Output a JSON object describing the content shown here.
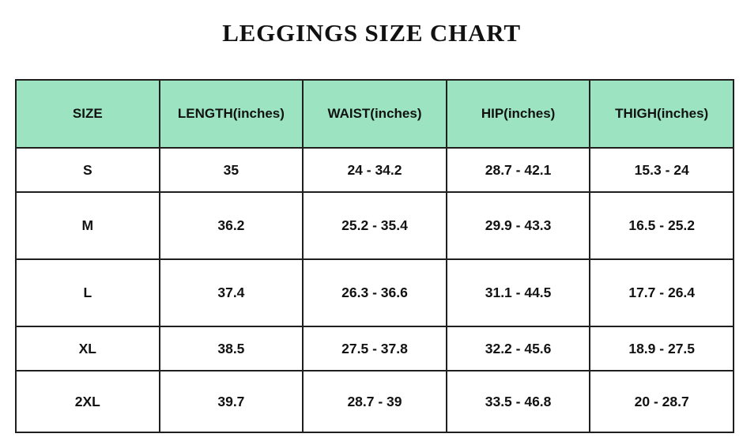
{
  "page": {
    "title": "LEGGINGS SIZE CHART",
    "background": "#ffffff"
  },
  "table": {
    "header_bg": "#9ce4c1",
    "border_color": "#1f1f1f",
    "text_color": "#121212",
    "unit": "inches",
    "columns": [
      "SIZE",
      "LENGTH(inches)",
      "WAIST(inches)",
      "HIP(inches)",
      "THIGH(inches)"
    ],
    "rows": [
      [
        "S",
        "35",
        "24 - 34.2",
        "28.7 - 42.1",
        "15.3 - 24"
      ],
      [
        "M",
        "36.2",
        "25.2 - 35.4",
        "29.9 - 43.3",
        "16.5 - 25.2"
      ],
      [
        "L",
        "37.4",
        "26.3 - 36.6",
        "31.1 - 44.5",
        "17.7 - 26.4"
      ],
      [
        "XL",
        "38.5",
        "27.5 - 37.8",
        "32.2 - 45.6",
        "18.9 - 27.5"
      ],
      [
        "2XL",
        "39.7",
        "28.7 - 39",
        "33.5 - 46.8",
        "20 - 28.7"
      ]
    ]
  }
}
